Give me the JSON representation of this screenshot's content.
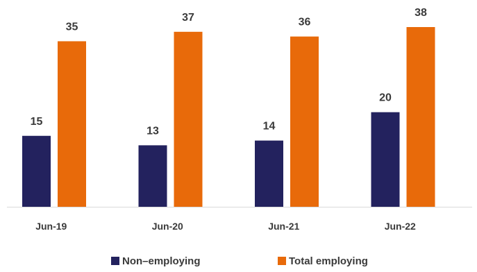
{
  "chart_data": {
    "type": "bar",
    "categories": [
      "Jun-19",
      "Jun-20",
      "Jun-21",
      "Jun-22"
    ],
    "series": [
      {
        "name": "Non–employing",
        "color": "#23225e",
        "values": [
          15,
          13,
          14,
          20
        ]
      },
      {
        "name": "Total employing",
        "color": "#e86a0a",
        "values": [
          35,
          37,
          36,
          38
        ]
      }
    ],
    "title": "",
    "xlabel": "",
    "ylabel": "",
    "ylim": [
      0,
      38
    ],
    "grid": false,
    "legend_position": "bottom"
  }
}
